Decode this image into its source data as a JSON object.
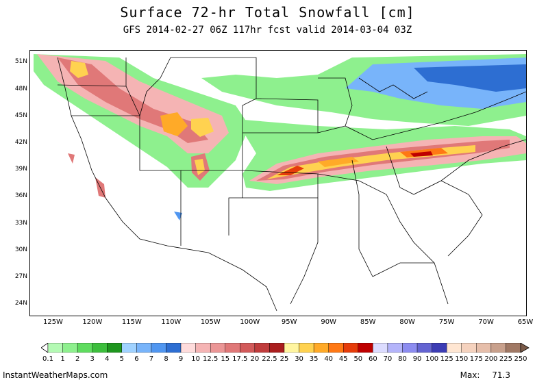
{
  "title": "Surface 72-hr Total Snowfall [cm]",
  "subtitle": "GFS 2014-02-27 06Z 117hr fcst valid 2014-03-04 03Z",
  "lat_labels": [
    "51N",
    "48N",
    "45N",
    "42N",
    "39N",
    "36N",
    "33N",
    "30N",
    "27N",
    "24N"
  ],
  "lat_values": [
    51,
    48,
    45,
    42,
    39,
    36,
    33,
    30,
    27,
    24
  ],
  "lon_labels": [
    "125W",
    "120W",
    "115W",
    "110W",
    "105W",
    "100W",
    "95W",
    "90W",
    "85W",
    "80W",
    "75W",
    "70W",
    "65W"
  ],
  "lon_values": [
    -125,
    -120,
    -115,
    -110,
    -105,
    -100,
    -95,
    -90,
    -85,
    -80,
    -75,
    -70,
    -65
  ],
  "colorbar": {
    "labels": [
      "0.1",
      "1",
      "2",
      "3",
      "4",
      "5",
      "6",
      "7",
      "8",
      "9",
      "10",
      "12.5",
      "15",
      "17.5",
      "20",
      "22.5",
      "25",
      "30",
      "35",
      "40",
      "45",
      "50",
      "60",
      "70",
      "80",
      "90",
      "100",
      "125",
      "150",
      "175",
      "200",
      "225",
      "250"
    ],
    "colors": [
      "#b4fab4",
      "#8ef08e",
      "#5fdc5f",
      "#3cbe3c",
      "#1e961e",
      "#a0d2ff",
      "#78b4fa",
      "#5096f0",
      "#2d6ed2",
      "#ffdcdc",
      "#f5b4b4",
      "#eb9696",
      "#e07878",
      "#d25a5a",
      "#c03c3c",
      "#aa1e1e",
      "#fff5a0",
      "#ffd250",
      "#ffaa28",
      "#ff7814",
      "#e63c0a",
      "#be0000",
      "#dcdcff",
      "#b4b4fa",
      "#8c8cf0",
      "#6464d2",
      "#3c3cb4",
      "#ffe6d2",
      "#f5d2be",
      "#e6beaa",
      "#c8a08c",
      "#a07864"
    ]
  },
  "source": "InstantWeatherMaps.com",
  "max_label": "Max:",
  "max_value": "71.3"
}
